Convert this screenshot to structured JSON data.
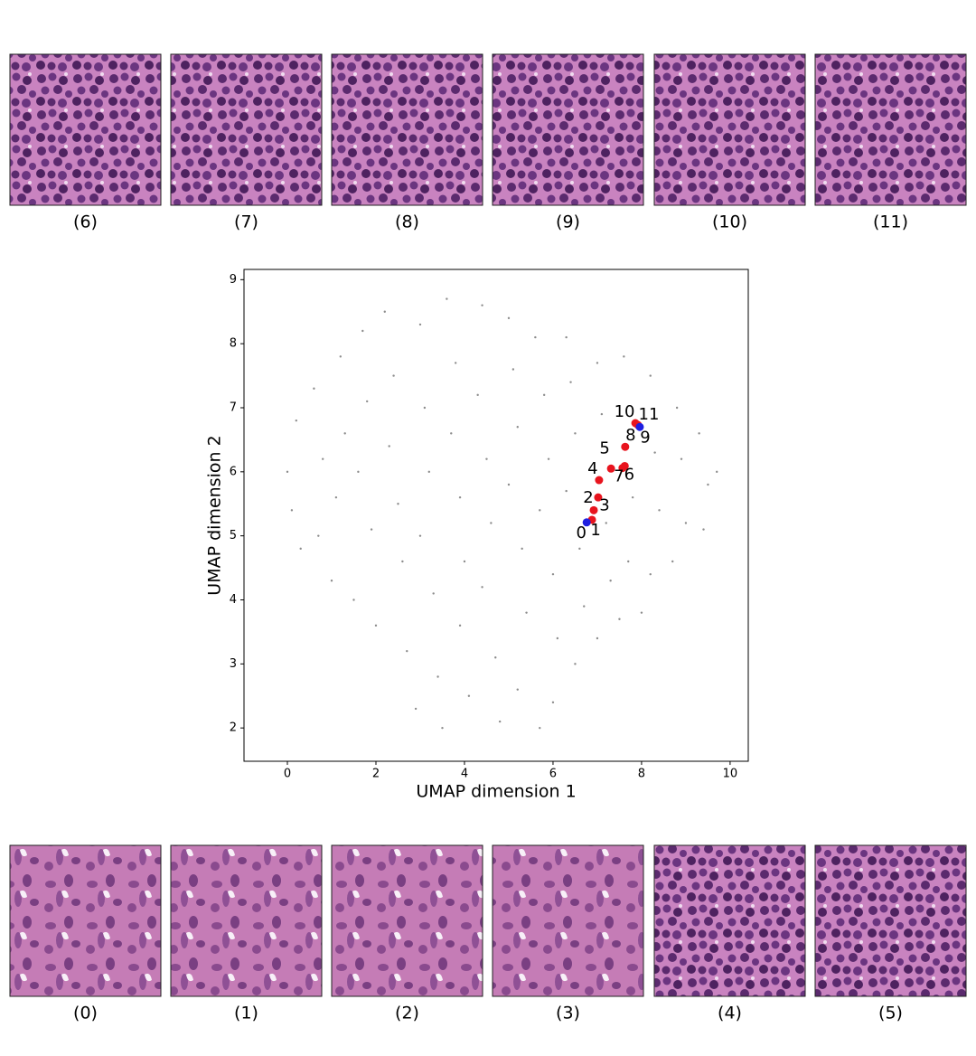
{
  "chart_data": {
    "type": "scatter",
    "xlabel": "UMAP dimension 1",
    "ylabel": "UMAP dimension 2",
    "xlim": [
      -0.98,
      10.41
    ],
    "ylim": [
      1.48,
      9.16
    ],
    "xticks": [
      0,
      2,
      4,
      6,
      8,
      10
    ],
    "yticks": [
      2,
      3,
      4,
      5,
      6,
      7,
      8,
      9
    ],
    "background": {
      "color": "#8c8c8c",
      "x": [
        0.0,
        0.2,
        0.1,
        0.3,
        0.6,
        0.8,
        0.7,
        1.0,
        1.2,
        1.3,
        1.1,
        1.5,
        1.7,
        1.8,
        1.6,
        1.9,
        2.0,
        2.2,
        2.4,
        2.3,
        2.5,
        2.6,
        2.7,
        2.9,
        3.0,
        3.1,
        3.2,
        3.0,
        3.3,
        3.4,
        3.5,
        3.6,
        3.8,
        3.7,
        3.9,
        4.0,
        3.9,
        4.1,
        4.4,
        4.3,
        4.5,
        4.6,
        4.4,
        4.7,
        4.8,
        5.0,
        5.1,
        5.2,
        5.0,
        5.3,
        5.4,
        5.2,
        5.7,
        5.6,
        5.8,
        5.9,
        5.7,
        6.0,
        6.1,
        6.0,
        6.3,
        6.4,
        6.5,
        6.3,
        6.6,
        6.7,
        6.5,
        7.0,
        7.1,
        7.2,
        7.3,
        7.0,
        7.6,
        7.8,
        7.7,
        7.5,
        8.2,
        8.3,
        8.4,
        8.2,
        8.0,
        8.8,
        8.9,
        9.0,
        8.7,
        9.3,
        9.5,
        9.4,
        9.7
      ],
      "y": [
        6.0,
        6.8,
        5.4,
        4.8,
        7.3,
        6.2,
        5.0,
        4.3,
        7.8,
        6.6,
        5.6,
        4.0,
        8.2,
        7.1,
        6.0,
        5.1,
        3.6,
        8.5,
        7.5,
        6.4,
        5.5,
        4.6,
        3.2,
        2.3,
        8.3,
        7.0,
        6.0,
        5.0,
        4.1,
        2.8,
        2.0,
        8.7,
        7.7,
        6.6,
        5.6,
        4.6,
        3.6,
        2.5,
        8.6,
        7.2,
        6.2,
        5.2,
        4.2,
        3.1,
        2.1,
        8.4,
        7.6,
        6.7,
        5.8,
        4.8,
        3.8,
        2.6,
        2.0,
        8.1,
        7.2,
        6.2,
        5.4,
        4.4,
        3.4,
        2.4,
        8.1,
        7.4,
        6.6,
        5.7,
        4.8,
        3.9,
        3.0,
        7.7,
        6.9,
        5.2,
        4.3,
        3.4,
        7.8,
        5.6,
        4.6,
        3.7,
        7.5,
        6.3,
        5.4,
        4.4,
        3.8,
        7.0,
        6.2,
        5.2,
        4.6,
        6.6,
        5.8,
        5.1,
        6.0
      ]
    },
    "path": {
      "labels": [
        "0",
        "1",
        "2",
        "3",
        "4",
        "5",
        "6",
        "7",
        "8",
        "9",
        "10",
        "11"
      ],
      "x": [
        6.76,
        6.88,
        7.02,
        6.92,
        7.04,
        7.31,
        7.62,
        7.57,
        7.63,
        7.96,
        7.86,
        7.92
      ],
      "y": [
        5.21,
        5.25,
        5.6,
        5.4,
        5.87,
        6.05,
        6.09,
        6.06,
        6.39,
        6.7,
        6.76,
        6.73
      ],
      "colors": [
        "#1f1fe0",
        "#e8141e",
        "#e8141e",
        "#e8141e",
        "#e8141e",
        "#e8141e",
        "#e8141e",
        "#e8141e",
        "#e8141e",
        "#1f1fe0",
        "#e8141e",
        "#e8141e"
      ]
    }
  },
  "tiles": {
    "top": [
      "(6)",
      "(7)",
      "(8)",
      "(9)",
      "(10)",
      "(11)"
    ],
    "bottom": [
      "(0)",
      "(1)",
      "(2)",
      "(3)",
      "(4)",
      "(5)"
    ]
  }
}
